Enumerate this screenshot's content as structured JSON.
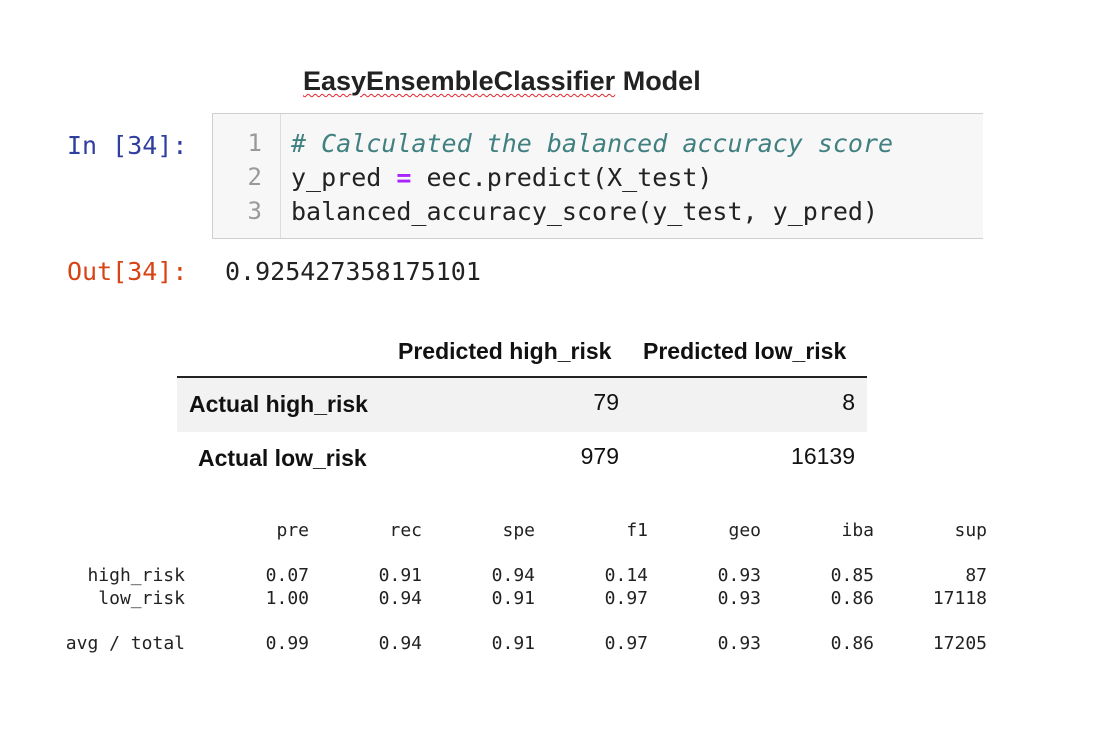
{
  "title": {
    "misspelled": "EasyEnsembleClassifier",
    "rest": "Model"
  },
  "cell": {
    "in_prompt": "In [34]:",
    "line_numbers": [
      "1",
      "2",
      "3"
    ],
    "code": {
      "line1": "# Calculated the balanced accuracy score",
      "line2_a": "y_pred",
      "line2_op": "=",
      "line2_b": "eec.predict(X_test)",
      "line3": "balanced_accuracy_score(y_test, y_pred)"
    },
    "out_prompt": "Out[34]:",
    "out_value": "0.925427358175101"
  },
  "confusion_matrix": {
    "columns": [
      "Predicted high_risk",
      "Predicted low_risk"
    ],
    "rows": [
      {
        "label": "Actual high_risk",
        "values": [
          "79",
          "8"
        ]
      },
      {
        "label": "Actual low_risk",
        "values": [
          "979",
          "16139"
        ]
      }
    ]
  },
  "report": {
    "headers": [
      "pre",
      "rec",
      "spe",
      "f1",
      "geo",
      "iba",
      "sup"
    ],
    "rows": [
      {
        "label": "high_risk",
        "values": [
          "0.07",
          "0.91",
          "0.94",
          "0.14",
          "0.93",
          "0.85",
          "87"
        ]
      },
      {
        "label": "low_risk",
        "values": [
          "1.00",
          "0.94",
          "0.91",
          "0.97",
          "0.93",
          "0.86",
          "17118"
        ]
      },
      {
        "label": "avg / total",
        "values": [
          "0.99",
          "0.94",
          "0.91",
          "0.97",
          "0.93",
          "0.86",
          "17205"
        ]
      }
    ]
  }
}
